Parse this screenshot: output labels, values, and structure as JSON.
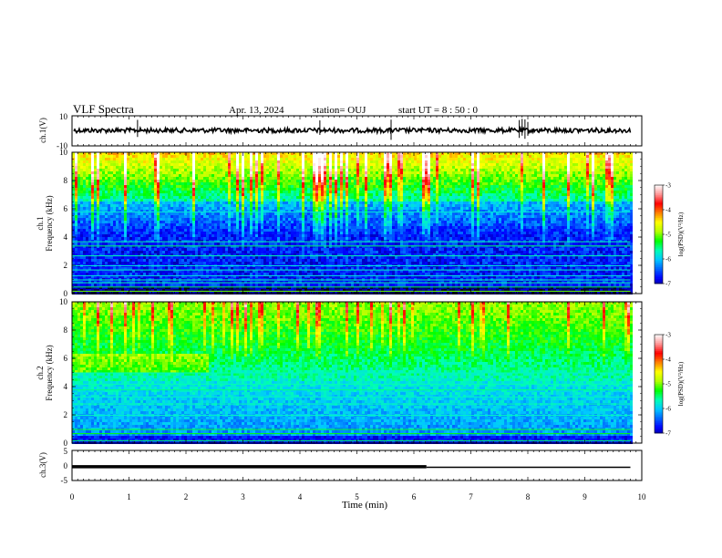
{
  "header": {
    "title": "VLF Spectra",
    "date": "Apr. 13, 2024",
    "station": "station= OUJ",
    "start": "start  UT =   8 : 50 : 0"
  },
  "chart_data": [
    {
      "type": "line",
      "ylabel": "ch.1(V)",
      "ylim": [
        -10,
        10
      ],
      "yticks": [
        "10",
        "-10"
      ],
      "xlim": [
        0,
        10
      ],
      "description_value_level": 0
    },
    {
      "type": "heatmap",
      "ylabel_line1": "ch.1",
      "ylabel_line2": "Frequency (kHz)",
      "ylim": [
        0,
        10
      ],
      "yticks": [
        "0",
        "2",
        "4",
        "6",
        "8",
        "10"
      ],
      "xlim": [
        0,
        10
      ],
      "colorbar": {
        "label": "log(PSD)(V²/Hz)",
        "range": [
          -7,
          -3
        ],
        "ticks": [
          "-3",
          "-4",
          "-5",
          "-6",
          "-7"
        ]
      }
    },
    {
      "type": "heatmap",
      "ylabel_line1": "ch.2",
      "ylabel_line2": "Frequency (kHz)",
      "ylim": [
        0,
        10
      ],
      "yticks": [
        "0",
        "2",
        "4",
        "6",
        "8",
        "10"
      ],
      "xlim": [
        0,
        10
      ],
      "colorbar": {
        "label": "log(PSD)(V²/Hz)",
        "range": [
          -7,
          -3
        ],
        "ticks": [
          "-3",
          "-4",
          "-5",
          "-6",
          "-7"
        ]
      }
    },
    {
      "type": "line",
      "ylabel": "ch.3(V)",
      "ylim": [
        -5,
        5
      ],
      "yticks": [
        "5",
        "0",
        "-5"
      ],
      "xlim": [
        0,
        10
      ],
      "series": [
        {
          "x": [
            0,
            6.22
          ],
          "y": [
            0.2,
            0.2
          ]
        },
        {
          "x": [
            6.22,
            9.8
          ],
          "y": [
            0,
            0
          ]
        }
      ]
    }
  ],
  "xaxis": {
    "label": "Time (min)",
    "ticks": [
      "0",
      "1",
      "2",
      "3",
      "4",
      "5",
      "6",
      "7",
      "8",
      "9",
      "10"
    ],
    "xlim": [
      0,
      10
    ],
    "data_end": 9.8
  },
  "colors": {
    "colormap": [
      "#000000",
      "#00007a",
      "#0000ff",
      "#0064ff",
      "#00c8ff",
      "#00ffb4",
      "#00ff00",
      "#b4ff00",
      "#ffff00",
      "#ff8000",
      "#ff0000",
      "#ff9696",
      "#ffffff"
    ]
  }
}
